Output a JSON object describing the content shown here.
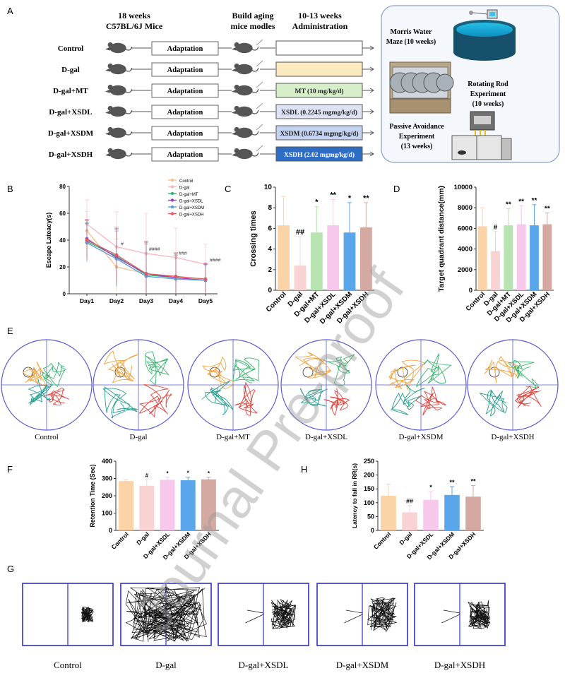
{
  "panel_letters": [
    "A",
    "B",
    "C",
    "D",
    "E",
    "F",
    "H",
    "G"
  ],
  "panelA": {
    "col_mice": "18 weeks",
    "col_mice2": "C57BL/6J Mice",
    "col_build": "Build aging",
    "col_build2": "mice modles",
    "col_admin": "10-13 weeks",
    "col_admin2": "Administration",
    "groups": [
      "Control",
      "D-gal",
      "D-gal+MT",
      "D-gal+XSDL",
      "D-gal+XSDM",
      "D-gal+XSDH"
    ],
    "adaptation": "Adaptation",
    "doses": [
      "",
      "",
      "MT (10 mg/kg/d)",
      "XSDL (0.2245 mgmg/kg/d)",
      "XSDM (0.6734 mgmg/kg/d)",
      "XSDH (2.02 mgmg/kg/d)"
    ],
    "dose_colors": [
      "#ffffff",
      "#fbe9c0",
      "#d6eec9",
      "#dde3f4",
      "#c3d2f0",
      "#2e6dc4"
    ],
    "experiments": {
      "mwm": "Morris Water",
      "mwm2": "Maze (10 weeks)",
      "rr": "Rotating Rod",
      "rr2": "Experiment",
      "rr3": "(10 weeks)",
      "pa": "Passive Avoidance",
      "pa2": "Experiment",
      "pa3": "(13 weeks)"
    }
  },
  "group_colors": [
    "#fcd3a6",
    "#f9d3d3",
    "#b7e4b0",
    "#f7c8ec",
    "#5aa6ea",
    "#d3a9a2"
  ],
  "group_labels": [
    "Control",
    "D-gal",
    "D-gal+MT",
    "D-gal+XSDL",
    "D-gal+XSDM",
    "D-gal+XSDH"
  ],
  "chart_data": [
    {
      "panel": "B",
      "type": "line",
      "title": "",
      "xlabel": "",
      "ylabel": "Escape Lateacy(s)",
      "categories": [
        "Day1",
        "Day2",
        "Day3",
        "Day4",
        "Day5"
      ],
      "ylim": [
        0,
        80
      ],
      "yticks": [
        0,
        20,
        40,
        60,
        80
      ],
      "series": [
        {
          "name": "Control",
          "color": "#f5c08c",
          "marker": "triangle",
          "values": [
            47,
            20,
            15,
            13,
            10
          ]
        },
        {
          "name": "D-gal",
          "color": "#f4b7c0",
          "marker": "circle",
          "values": [
            52,
            35,
            30,
            27,
            22
          ]
        },
        {
          "name": "D-gal+MT",
          "color": "#2bb673",
          "marker": "square",
          "values": [
            39,
            28,
            14,
            12,
            10
          ]
        },
        {
          "name": "D-gal+XSDL",
          "color": "#9b3fc1",
          "marker": "diamond",
          "values": [
            41,
            27,
            15,
            12,
            10
          ]
        },
        {
          "name": "D-gal+XSDM",
          "color": "#5a9bd8",
          "marker": "triangle-down",
          "values": [
            38,
            26,
            13,
            11,
            10
          ]
        },
        {
          "name": "D-gal+XSDH",
          "color": "#e0585f",
          "marker": "triangle-left",
          "values": [
            40,
            29,
            15,
            13,
            11
          ]
        }
      ],
      "annotations": [
        "#",
        "####",
        "###",
        "####"
      ]
    },
    {
      "panel": "C",
      "type": "bar",
      "ylabel": "Crossing times",
      "categories": [
        "Control",
        "D-gal",
        "D-gal+MT",
        "D-gal+XSDL",
        "D-gal+XSDM",
        "D-gal+XSDH"
      ],
      "values": [
        6.3,
        2.4,
        5.6,
        6.3,
        5.6,
        6.1
      ],
      "errors": [
        2.8,
        2.8,
        2.5,
        2.5,
        2.9,
        2.4
      ],
      "sig": [
        "",
        "##",
        "*",
        "**",
        "*",
        "**"
      ],
      "ylim": [
        0,
        10
      ],
      "yticks": [
        0,
        2,
        4,
        6,
        8,
        10
      ]
    },
    {
      "panel": "D",
      "type": "bar",
      "ylabel": "Target quadrant distance(mm)",
      "categories": [
        "Control",
        "D-gal",
        "D-gal+MT",
        "D-gal+XSDL",
        "D-gal+XSDM",
        "D-gal+XSDH"
      ],
      "values": [
        6200,
        3800,
        6300,
        6400,
        6300,
        6400
      ],
      "errors": [
        1800,
        1900,
        1600,
        1800,
        2000,
        1100
      ],
      "sig": [
        "",
        "#",
        "**",
        "**",
        "**",
        "**"
      ],
      "ylim": [
        0,
        10000
      ],
      "yticks": [
        0,
        2000,
        4000,
        6000,
        8000,
        10000
      ]
    },
    {
      "panel": "F",
      "type": "bar",
      "ylabel": "Retention Time (Sec)",
      "categories": [
        "Control",
        "D-gal",
        "D-gal+XSDL",
        "D-gal+XSDM",
        "D-gal+XSDH"
      ],
      "values": [
        285,
        258,
        292,
        290,
        295
      ],
      "errors": [
        8,
        35,
        15,
        18,
        12
      ],
      "sig": [
        "",
        "#",
        "*",
        "*",
        "*"
      ],
      "colors": [
        "#fcd3a6",
        "#f9d3d3",
        "#f7c8ec",
        "#5aa6ea",
        "#d3a9a2"
      ],
      "ylim": [
        0,
        400
      ],
      "yticks": [
        0,
        100,
        200,
        300,
        400
      ]
    },
    {
      "panel": "H",
      "type": "bar",
      "ylabel": "Latency to fall in RR(s)",
      "categories": [
        "Control",
        "D-gal",
        "D-gal+XSDL",
        "D-gal+XSDM",
        "D-gal+XSDH"
      ],
      "values": [
        125,
        65,
        110,
        128,
        122
      ],
      "errors": [
        42,
        25,
        30,
        30,
        40
      ],
      "sig": [
        "",
        "##",
        "*",
        "**",
        "**"
      ],
      "colors": [
        "#fcd3a6",
        "#f9d3d3",
        "#f7c8ec",
        "#5aa6ea",
        "#d3a9a2"
      ],
      "ylim": [
        0,
        250
      ],
      "yticks": [
        0,
        50,
        100,
        150,
        200,
        250
      ]
    }
  ],
  "panelE": {
    "labels": [
      "Control",
      "D-gal",
      "D-gal+MT",
      "D-gal+XSDL",
      "D-gal+XSDM",
      "D-gal+XSDH"
    ]
  },
  "panelG": {
    "labels": [
      "Control",
      "D-gal",
      "D-gal+XSDL",
      "D-gal+XSDM",
      "D-gal+XSDH"
    ]
  },
  "watermark": "Journal Pre-proof"
}
